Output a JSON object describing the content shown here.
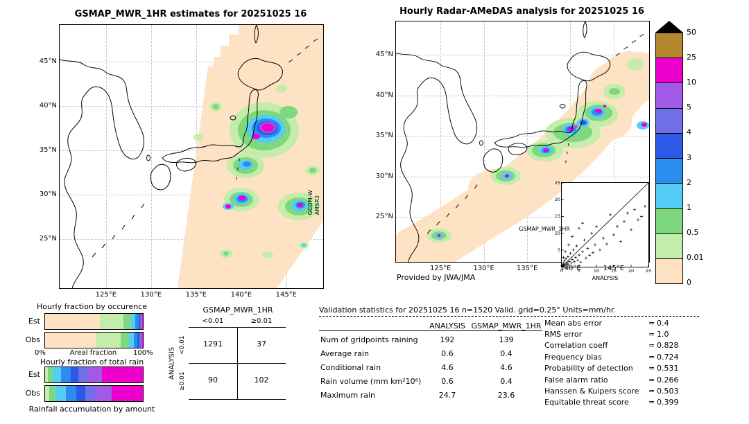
{
  "map_axes": {
    "lat": [
      "45°N",
      "40°N",
      "35°N",
      "30°N",
      "25°N"
    ],
    "lon": [
      "125°E",
      "130°E",
      "135°E",
      "140°E",
      "145°E"
    ]
  },
  "colorbar": {
    "tick_labels": [
      "50",
      "25",
      "10",
      "5",
      "4",
      "3",
      "2",
      "1",
      "0.5",
      "0.01",
      "0"
    ],
    "segment_colors": [
      "#b3882e",
      "#ee00cc",
      "#a05ae6",
      "#6f6fe8",
      "#2d59e8",
      "#2b8df0",
      "#55ccf5",
      "#7ed87e",
      "#c4ecab",
      "#fde3c3"
    ],
    "overflow_color": "#000000",
    "units": "mm/hr"
  },
  "chart_data": [
    {
      "id": "gsmap_estimates_map",
      "type": "heatmap",
      "title": "GSMAP_MWR_1HR estimates for 20251025 16",
      "units": "mm/hr",
      "levels": [
        0,
        0.01,
        0.5,
        1,
        2,
        3,
        4,
        5,
        10,
        25,
        50
      ],
      "watermark_lines": [
        "GCOM-W",
        "AMSR2"
      ]
    },
    {
      "id": "radar_amedas_map",
      "type": "heatmap",
      "title": "Hourly Radar-AMeDAS analysis for 20251025 16",
      "units": "mm/hr",
      "levels": [
        0,
        0.01,
        0.5,
        1,
        2,
        3,
        4,
        5,
        10,
        25,
        50
      ],
      "credit": "Provided by JWA/JMA"
    },
    {
      "id": "hourly_fraction_by_occurrence",
      "type": "bar",
      "stacked": true,
      "orientation": "horizontal",
      "title": "Hourly fraction by occurence",
      "xlabel": "Areal fraction",
      "x_left_label": "0%",
      "x_right_label": "100%",
      "xlim": [
        0,
        100
      ],
      "bins": [
        "0",
        "0.01",
        "0.5",
        "1",
        "2",
        "3",
        "4",
        "5",
        "10"
      ],
      "colors": [
        "#fde3c3",
        "#c4ecab",
        "#7ed87e",
        "#55ccf5",
        "#2b8df0",
        "#2d59e8",
        "#6f6fe8",
        "#a05ae6",
        "#ee00cc"
      ],
      "series": [
        {
          "name": "Est",
          "values": [
            56,
            24,
            8,
            4.5,
            3,
            1.5,
            1.2,
            1,
            0.8
          ]
        },
        {
          "name": "Obs",
          "values": [
            52,
            25,
            9,
            5,
            3.5,
            2,
            1.5,
            1.2,
            0.8
          ]
        }
      ]
    },
    {
      "id": "hourly_fraction_of_total_rain",
      "type": "bar",
      "stacked": true,
      "orientation": "horizontal",
      "title": "Hourly fraction of total rain",
      "caption": "Rainfall accumulation by amount",
      "xlim": [
        0,
        100
      ],
      "bins": [
        "0.01",
        "0.5",
        "1",
        "2",
        "3",
        "4",
        "5",
        "10"
      ],
      "colors": [
        "#c4ecab",
        "#7ed87e",
        "#55ccf5",
        "#2b8df0",
        "#2d59e8",
        "#6f6fe8",
        "#a05ae6",
        "#ee00cc"
      ],
      "series": [
        {
          "name": "Est",
          "values": [
            3,
            5,
            8,
            10,
            8,
            9,
            15,
            42
          ]
        },
        {
          "name": "Obs",
          "values": [
            4,
            7,
            10,
            11,
            9,
            10,
            17,
            32
          ]
        }
      ]
    },
    {
      "id": "contingency_table",
      "type": "table",
      "title": "GSMAP_MWR_1HR",
      "row_axis": "ANALYSIS",
      "col_labels": [
        "<0.01",
        "≥0.01"
      ],
      "row_labels": [
        "<0.01",
        "≥0.01"
      ],
      "values": [
        [
          1291,
          37
        ],
        [
          90,
          102
        ]
      ]
    },
    {
      "id": "scatter_gsmap_vs_analysis",
      "type": "scatter",
      "xlabel": "ANALYSIS",
      "ylabel": "GSMAP_MWR_1HR",
      "xlim": [
        0,
        25
      ],
      "ylim": [
        0,
        25
      ],
      "ticks": [
        0,
        5,
        10,
        15,
        20,
        25
      ],
      "diagonal": true,
      "points": [
        [
          0.2,
          0.1
        ],
        [
          0.3,
          0.6
        ],
        [
          0.4,
          0.2
        ],
        [
          0.5,
          1.1
        ],
        [
          0.6,
          0.3
        ],
        [
          0.8,
          1.8
        ],
        [
          1,
          0.5
        ],
        [
          1.2,
          2.4
        ],
        [
          1.4,
          0.8
        ],
        [
          1.6,
          1.2
        ],
        [
          1.8,
          3
        ],
        [
          2,
          0.6
        ],
        [
          2.2,
          1.6
        ],
        [
          2.5,
          4
        ],
        [
          2.8,
          1.1
        ],
        [
          3,
          2.2
        ],
        [
          3.3,
          5
        ],
        [
          3.6,
          1.5
        ],
        [
          4,
          2.8
        ],
        [
          4.3,
          6.2
        ],
        [
          4.6,
          2
        ],
        [
          5,
          3.5
        ],
        [
          5.5,
          1.4
        ],
        [
          6,
          4.5
        ],
        [
          6.5,
          8
        ],
        [
          7,
          2.6
        ],
        [
          7.5,
          5.5
        ],
        [
          8,
          3.4
        ],
        [
          8.6,
          10
        ],
        [
          9,
          4.2
        ],
        [
          9.6,
          6.5
        ],
        [
          10,
          12
        ],
        [
          11,
          5
        ],
        [
          12,
          8.5
        ],
        [
          13,
          6.8
        ],
        [
          14,
          15.5
        ],
        [
          15,
          9.5
        ],
        [
          16,
          12
        ],
        [
          17,
          7.5
        ],
        [
          18,
          13.5
        ],
        [
          19,
          16
        ],
        [
          20,
          11
        ],
        [
          21,
          17
        ],
        [
          22,
          14
        ],
        [
          23,
          15
        ],
        [
          24,
          18
        ],
        [
          1,
          4.5
        ],
        [
          2,
          6.5
        ],
        [
          3,
          9
        ],
        [
          5,
          11.5
        ],
        [
          0.5,
          2.8
        ],
        [
          6,
          13
        ]
      ]
    },
    {
      "id": "validation_statistics",
      "type": "table",
      "title": "Validation statistics for 20251025 16  n=1520 Valid. grid=0.25° Units=mm/hr.",
      "col_headers": [
        "ANALYSIS",
        "GSMAP_MWR_1HR"
      ],
      "rows": [
        [
          "Num of gridpoints raining",
          "192",
          "139"
        ],
        [
          "Average rain",
          "0.6",
          "0.4"
        ],
        [
          "Conditional rain",
          "4.6",
          "4.6"
        ],
        [
          "Rain volume (mm km²10⁶)",
          "0.6",
          "0.4"
        ],
        [
          "Maximum rain",
          "24.7",
          "23.6"
        ]
      ],
      "metrics": [
        [
          "Mean abs error",
          "0.4"
        ],
        [
          "RMS error",
          "1.0"
        ],
        [
          "Correlation coeff",
          "0.828"
        ],
        [
          "Frequency bias",
          "0.724"
        ],
        [
          "Probability of detection",
          "0.531"
        ],
        [
          "False alarm ratio",
          "0.266"
        ],
        [
          "Hanssen & Kuipers score",
          "0.503"
        ],
        [
          "Equitable threat score",
          "0.399"
        ]
      ]
    }
  ]
}
